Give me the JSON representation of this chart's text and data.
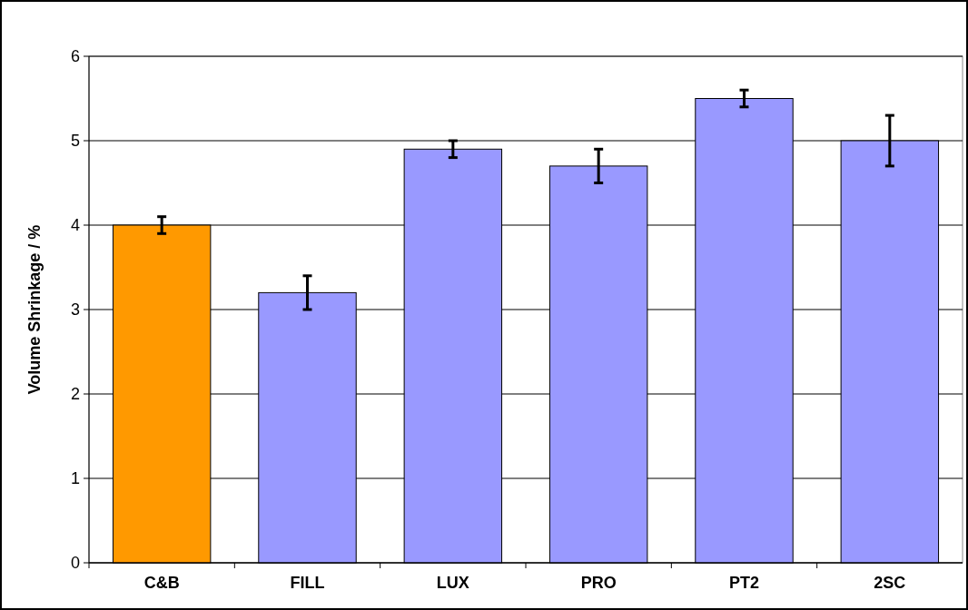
{
  "chart_data": {
    "type": "bar",
    "ylabel": "Volume Shrinkage / %",
    "categories": [
      "C&B",
      "FILL",
      "LUX",
      "PRO",
      "PT2",
      "2SC"
    ],
    "values": [
      4.0,
      3.2,
      4.9,
      4.7,
      5.5,
      5.0
    ],
    "colors": [
      "#ff9900",
      "#9999ff",
      "#9999ff",
      "#9999ff",
      "#9999ff",
      "#9999ff"
    ],
    "errors": [
      0.1,
      0.2,
      0.1,
      0.2,
      0.1,
      0.3
    ],
    "ylim": [
      0,
      6
    ],
    "yticks": [
      0,
      1,
      2,
      3,
      4,
      5,
      6
    ],
    "grid": "y"
  }
}
